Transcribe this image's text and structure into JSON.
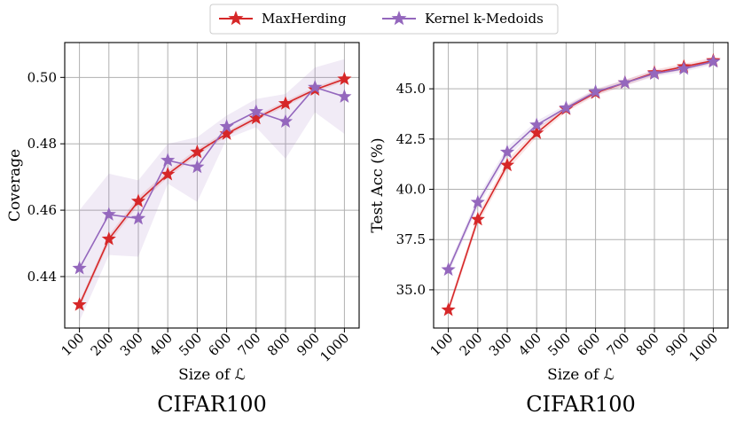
{
  "legend": [
    {
      "label": "MaxHerding",
      "color": "#d62728"
    },
    {
      "label": "Kernel k-Medoids",
      "color": "#9467bd"
    }
  ],
  "chart_data": [
    {
      "type": "line",
      "title": "CIFAR100",
      "xlabel": "Size of ℒ",
      "ylabel": "Coverage",
      "categories": [
        "100",
        "200",
        "300",
        "400",
        "500",
        "600",
        "700",
        "800",
        "900",
        "1000"
      ],
      "ylim": [
        0.4245,
        0.5105
      ],
      "yticks": [
        0.44,
        0.46,
        0.48,
        0.5
      ],
      "ytick_labels": [
        "0.44",
        "0.46",
        "0.48",
        "0.50"
      ],
      "grid": true,
      "series": [
        {
          "name": "MaxHerding",
          "color": "#d62728",
          "values": [
            0.4315,
            0.4513,
            0.4627,
            0.4708,
            0.4775,
            0.483,
            0.4877,
            0.4921,
            0.4963,
            0.4995
          ],
          "band_lower": [
            0.4305,
            0.45,
            0.4615,
            0.4698,
            0.4765,
            0.4822,
            0.4869,
            0.4913,
            0.4955,
            0.4988
          ],
          "band_upper": [
            0.4325,
            0.4525,
            0.464,
            0.4718,
            0.4785,
            0.4838,
            0.4885,
            0.4929,
            0.4971,
            0.5002
          ]
        },
        {
          "name": "Kernel k-Medoids",
          "color": "#9467bd",
          "values": [
            0.4425,
            0.4587,
            0.4575,
            0.475,
            0.473,
            0.4852,
            0.4897,
            0.4867,
            0.497,
            0.4942
          ],
          "band_lower": [
            0.4265,
            0.4465,
            0.446,
            0.468,
            0.4625,
            0.4815,
            0.485,
            0.4755,
            0.4895,
            0.483
          ],
          "band_upper": [
            0.46,
            0.471,
            0.469,
            0.48,
            0.482,
            0.4885,
            0.4935,
            0.495,
            0.503,
            0.5055
          ]
        }
      ]
    },
    {
      "type": "line",
      "title": "CIFAR100",
      "xlabel": "Size of ℒ",
      "ylabel": "Test Acc (%)",
      "categories": [
        "100",
        "200",
        "300",
        "400",
        "500",
        "600",
        "700",
        "800",
        "900",
        "1000"
      ],
      "ylim": [
        33.1,
        47.3
      ],
      "yticks": [
        35.0,
        37.5,
        40.0,
        42.5,
        45.0
      ],
      "ytick_labels": [
        "35.0",
        "37.5",
        "40.0",
        "42.5",
        "45.0"
      ],
      "grid": true,
      "series": [
        {
          "name": "MaxHerding",
          "color": "#d62728",
          "values": [
            34.0,
            38.5,
            41.2,
            42.8,
            44.0,
            44.8,
            45.3,
            45.8,
            46.1,
            46.4
          ],
          "band_lower": [
            33.8,
            38.25,
            40.95,
            42.6,
            43.85,
            44.65,
            45.15,
            45.65,
            45.95,
            46.25
          ],
          "band_upper": [
            34.2,
            38.75,
            41.45,
            43.0,
            44.15,
            44.95,
            45.45,
            45.95,
            46.25,
            46.55
          ]
        },
        {
          "name": "Kernel k-Medoids",
          "color": "#9467bd",
          "values": [
            36.0,
            39.35,
            41.85,
            43.2,
            44.05,
            44.85,
            45.3,
            45.75,
            46.0,
            46.35
          ],
          "band_lower": [
            35.8,
            39.1,
            41.6,
            43.0,
            43.9,
            44.7,
            45.15,
            45.6,
            45.85,
            46.2
          ],
          "band_upper": [
            36.2,
            39.6,
            42.1,
            43.4,
            44.2,
            45.0,
            45.45,
            45.9,
            46.15,
            46.5
          ]
        }
      ]
    }
  ]
}
